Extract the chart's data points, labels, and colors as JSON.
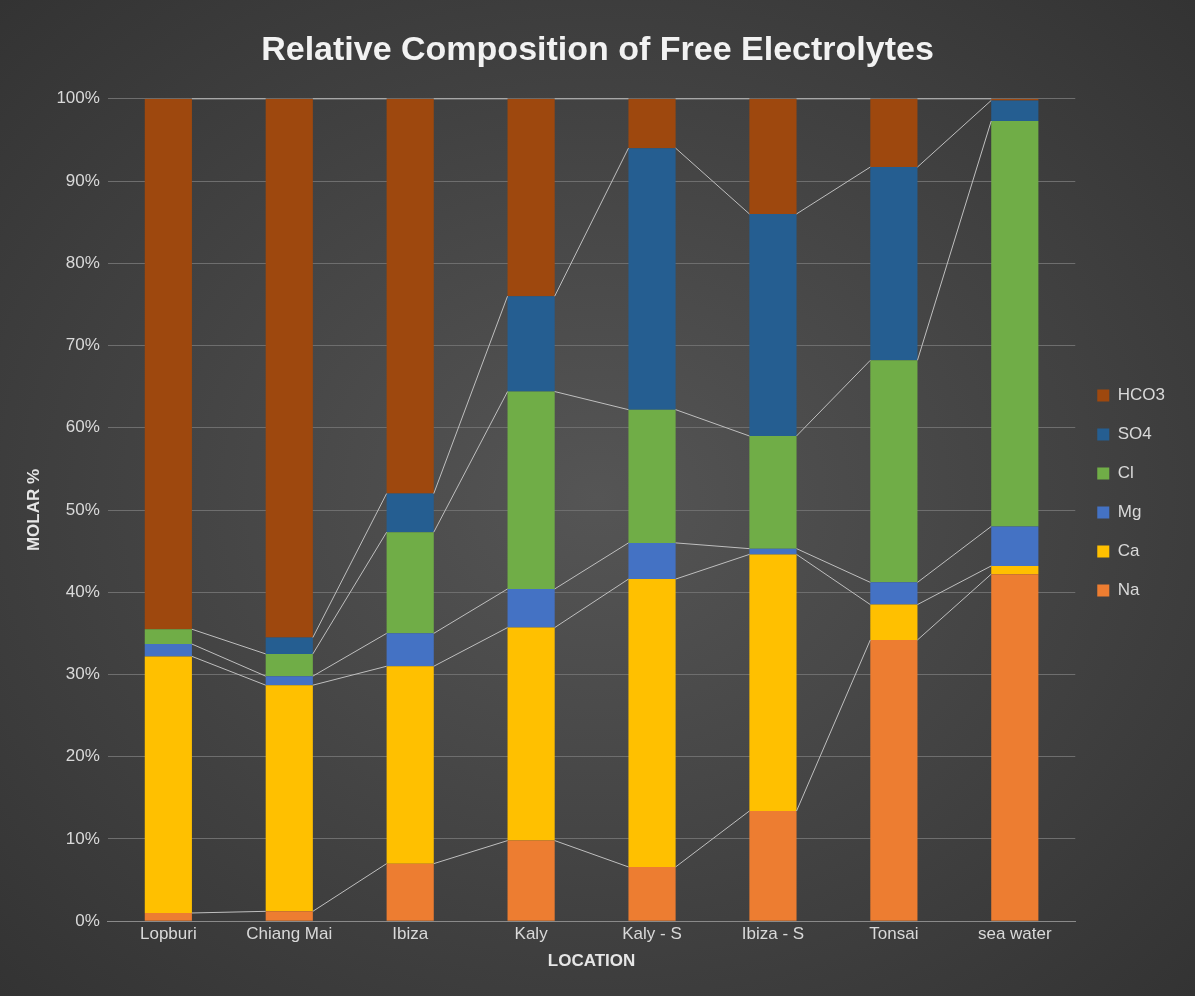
{
  "chart_data": {
    "type": "bar",
    "title": "Relative Composition of Free Electrolytes",
    "xlabel": "LOCATION",
    "ylabel": "MOLAR %",
    "categories": [
      "Lopburi",
      "Chiang Mai",
      "Ibiza",
      "Kaly",
      "Kaly - S",
      "Ibiza - S",
      "Tonsai",
      "sea water"
    ],
    "stacked": true,
    "grid": "y",
    "legend": "right",
    "ylim": [
      0,
      100
    ],
    "yticks": [
      {
        "value": 0,
        "label": "0%"
      },
      {
        "value": 10,
        "label": "10%"
      },
      {
        "value": 20,
        "label": "20%"
      },
      {
        "value": 30,
        "label": "30%"
      },
      {
        "value": 40,
        "label": "40%"
      },
      {
        "value": 50,
        "label": "50%"
      },
      {
        "value": 60,
        "label": "60%"
      },
      {
        "value": 70,
        "label": "70%"
      },
      {
        "value": 80,
        "label": "80%"
      },
      {
        "value": 90,
        "label": "90%"
      },
      {
        "value": 100,
        "label": "100%"
      }
    ],
    "series": [
      {
        "name": "Na",
        "color": "#ed7d31",
        "values": [
          1,
          1.2,
          7,
          9.8,
          6.6,
          13.4,
          34.2,
          42.2
        ]
      },
      {
        "name": "Ca",
        "color": "#ffc000",
        "values": [
          31.2,
          27.5,
          24,
          25.9,
          35,
          31.2,
          4.3,
          1
        ]
      },
      {
        "name": "Mg",
        "color": "#4472c4",
        "values": [
          1.5,
          1.1,
          4,
          4.7,
          4.4,
          0.7,
          2.7,
          4.8
        ]
      },
      {
        "name": "Cl",
        "color": "#70ad47",
        "values": [
          1.8,
          2.7,
          12.3,
          24,
          16.2,
          13.7,
          27,
          49.3
        ]
      },
      {
        "name": "SO4",
        "color": "#255e91",
        "values": [
          0,
          2,
          4.7,
          11.6,
          31.8,
          27,
          23.5,
          2.5
        ]
      },
      {
        "name": "HCO3",
        "color": "#9e480e",
        "values": [
          64.5,
          65.5,
          48,
          24,
          6,
          14,
          8.3,
          0.2
        ]
      }
    ]
  }
}
